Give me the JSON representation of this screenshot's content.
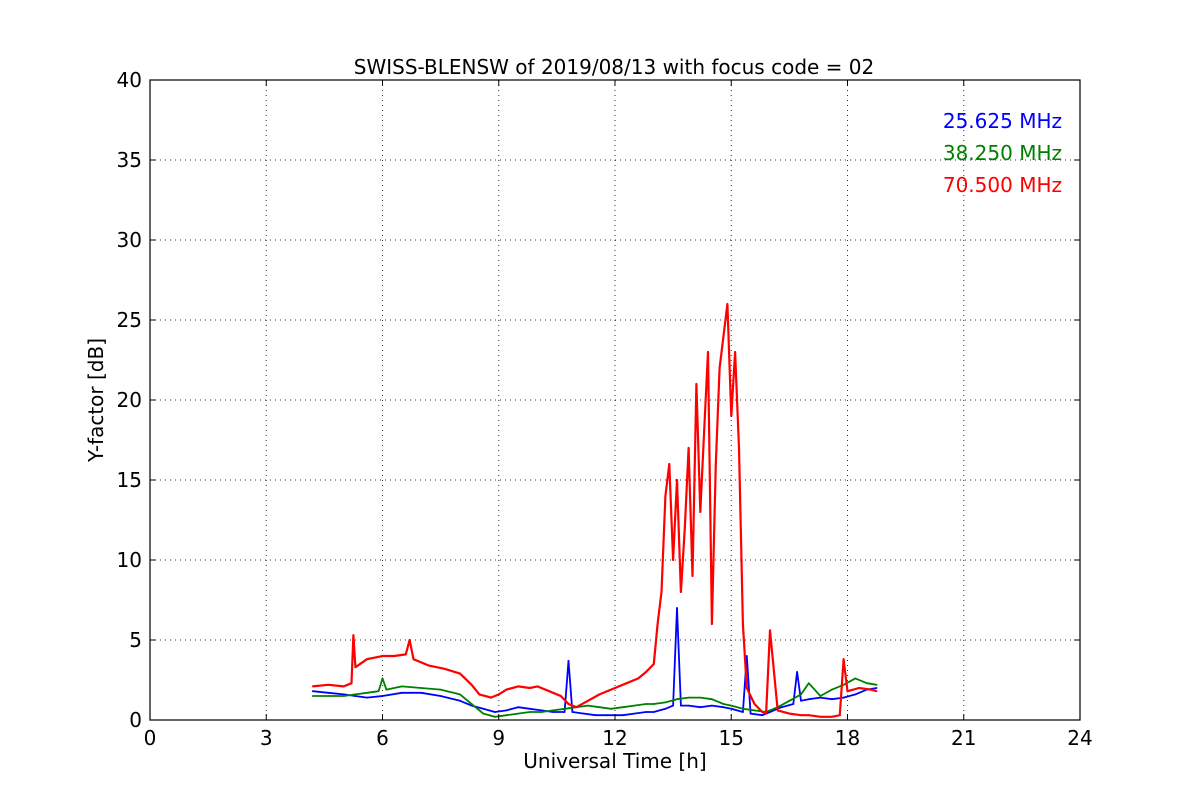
{
  "chart_data": {
    "type": "line",
    "title": "SWISS-BLENSW of 2019/08/13 with focus code = 02",
    "xlabel": "Universal Time [h]",
    "ylabel": "Y-factor [dB]",
    "xlim": [
      0,
      24
    ],
    "ylim": [
      0,
      40
    ],
    "xticks": [
      0,
      3,
      6,
      9,
      12,
      15,
      18,
      21,
      24
    ],
    "yticks": [
      0,
      5,
      10,
      15,
      20,
      25,
      30,
      35,
      40
    ],
    "grid": true,
    "legend_placement": "top-right",
    "series": [
      {
        "name": "25.625 MHz",
        "color": "#0000ff",
        "x": [
          4.2,
          4.6,
          5.0,
          5.3,
          5.6,
          6.0,
          6.5,
          7.0,
          7.5,
          8.0,
          8.3,
          8.6,
          8.9,
          9.2,
          9.5,
          9.8,
          10.1,
          10.4,
          10.7,
          10.8,
          10.9,
          11.2,
          11.5,
          11.8,
          12.0,
          12.2,
          12.5,
          12.8,
          13.0,
          13.3,
          13.5,
          13.6,
          13.7,
          13.9,
          14.2,
          14.5,
          14.8,
          15.0,
          15.3,
          15.4,
          15.5,
          15.8,
          16.0,
          16.3,
          16.6,
          16.7,
          16.8,
          17.0,
          17.3,
          17.6,
          17.9,
          18.2,
          18.5,
          18.75
        ],
        "y": [
          1.8,
          1.7,
          1.6,
          1.5,
          1.4,
          1.5,
          1.7,
          1.7,
          1.5,
          1.2,
          0.9,
          0.7,
          0.5,
          0.6,
          0.8,
          0.7,
          0.6,
          0.5,
          0.5,
          3.7,
          0.5,
          0.4,
          0.3,
          0.3,
          0.3,
          0.3,
          0.4,
          0.5,
          0.5,
          0.7,
          0.9,
          7.0,
          0.9,
          0.9,
          0.8,
          0.9,
          0.8,
          0.7,
          0.5,
          4.0,
          0.4,
          0.3,
          0.5,
          0.8,
          1.0,
          3.0,
          1.2,
          1.3,
          1.4,
          1.3,
          1.4,
          1.6,
          1.9,
          2.0
        ]
      },
      {
        "name": "38.250 MHz",
        "color": "#008000",
        "x": [
          4.2,
          4.6,
          5.0,
          5.3,
          5.6,
          5.9,
          6.0,
          6.1,
          6.5,
          7.0,
          7.5,
          8.0,
          8.3,
          8.6,
          8.9,
          9.2,
          9.5,
          9.8,
          10.1,
          10.4,
          10.7,
          11.0,
          11.3,
          11.6,
          11.9,
          12.2,
          12.5,
          12.8,
          13.0,
          13.3,
          13.6,
          13.9,
          14.2,
          14.5,
          14.8,
          15.0,
          15.3,
          15.6,
          15.9,
          16.2,
          16.5,
          16.8,
          17.0,
          17.3,
          17.6,
          17.9,
          18.2,
          18.5,
          18.75
        ],
        "y": [
          1.5,
          1.5,
          1.5,
          1.6,
          1.7,
          1.8,
          2.6,
          1.9,
          2.1,
          2.0,
          1.9,
          1.6,
          1.0,
          0.4,
          0.2,
          0.3,
          0.4,
          0.5,
          0.5,
          0.6,
          0.7,
          0.8,
          0.9,
          0.8,
          0.7,
          0.8,
          0.9,
          1.0,
          1.0,
          1.1,
          1.3,
          1.4,
          1.4,
          1.3,
          1.0,
          0.9,
          0.7,
          0.6,
          0.5,
          0.8,
          1.2,
          1.6,
          2.3,
          1.5,
          1.9,
          2.2,
          2.6,
          2.3,
          2.2
        ]
      },
      {
        "name": "70.500 MHz",
        "color": "#ff0000",
        "x": [
          4.2,
          4.6,
          5.0,
          5.2,
          5.25,
          5.3,
          5.6,
          6.0,
          6.3,
          6.6,
          6.7,
          6.8,
          7.2,
          7.6,
          8.0,
          8.3,
          8.5,
          8.8,
          9.0,
          9.2,
          9.5,
          9.8,
          10.0,
          10.3,
          10.6,
          10.8,
          11.0,
          11.3,
          11.6,
          12.0,
          12.3,
          12.6,
          12.8,
          13.0,
          13.1,
          13.2,
          13.3,
          13.4,
          13.5,
          13.6,
          13.7,
          13.8,
          13.9,
          14.0,
          14.1,
          14.2,
          14.3,
          14.4,
          14.5,
          14.6,
          14.7,
          14.8,
          14.9,
          15.0,
          15.1,
          15.2,
          15.3,
          15.4,
          15.6,
          15.8,
          15.9,
          16.0,
          16.2,
          16.5,
          16.8,
          17.0,
          17.3,
          17.6,
          17.8,
          17.9,
          18.0,
          18.3,
          18.6,
          18.75
        ],
        "y": [
          2.1,
          2.2,
          2.1,
          2.3,
          5.3,
          3.3,
          3.8,
          4.0,
          4.0,
          4.1,
          5.0,
          3.8,
          3.4,
          3.2,
          2.9,
          2.2,
          1.6,
          1.4,
          1.6,
          1.9,
          2.1,
          2.0,
          2.1,
          1.8,
          1.5,
          1.0,
          0.8,
          1.2,
          1.6,
          2.0,
          2.3,
          2.6,
          3.0,
          3.5,
          6.0,
          8.0,
          14.0,
          16.0,
          10.0,
          15.0,
          8.0,
          12.0,
          17.0,
          9.0,
          21.0,
          13.0,
          18.0,
          23.0,
          6.0,
          16.0,
          22.0,
          24.0,
          26.0,
          19.0,
          23.0,
          17.0,
          6.0,
          2.0,
          1.0,
          0.5,
          0.4,
          5.6,
          0.6,
          0.4,
          0.3,
          0.3,
          0.2,
          0.2,
          0.3,
          3.8,
          1.8,
          2.0,
          1.9,
          1.8
        ]
      }
    ]
  }
}
